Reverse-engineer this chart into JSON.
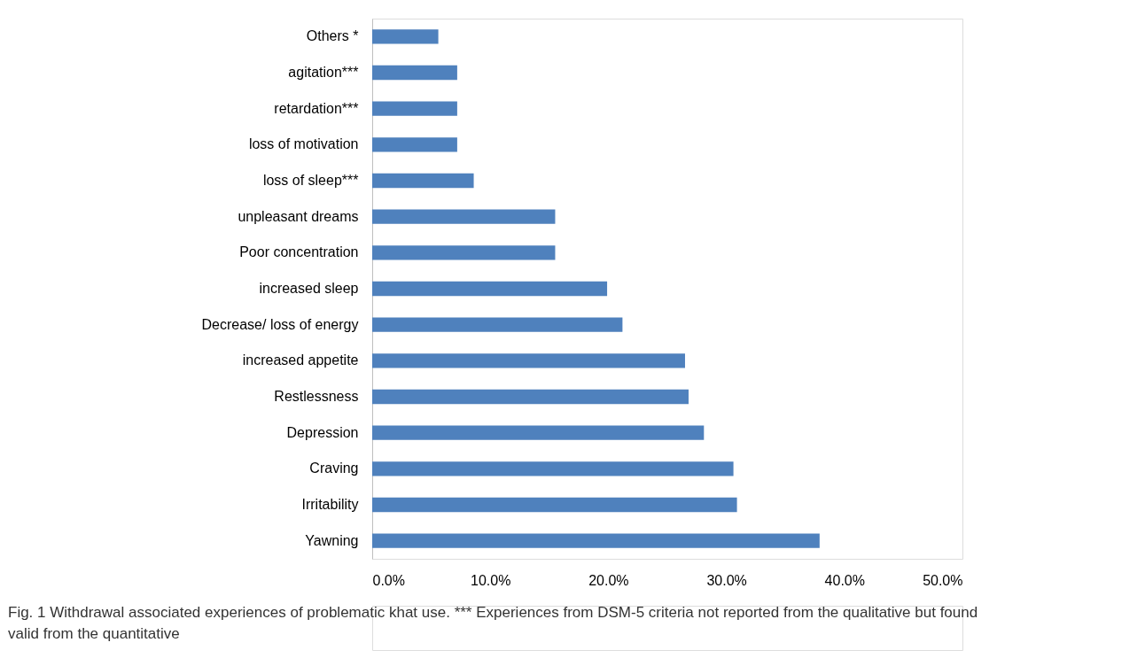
{
  "chart_data": {
    "type": "bar",
    "orientation": "horizontal",
    "categories": [
      "Others *",
      "agitation***",
      "retardation***",
      "loss of motivation",
      "loss of sleep***",
      "unpleasant dreams",
      "Poor concentration",
      "increased sleep",
      "Decrease/ loss of energy",
      "increased appetite",
      "Restlessness",
      "Depression",
      "Craving",
      "Irritability",
      "Yawning"
    ],
    "values": [
      5.6,
      7.2,
      7.2,
      7.2,
      8.6,
      15.5,
      15.5,
      19.9,
      21.2,
      26.5,
      26.8,
      28.1,
      30.6,
      30.9,
      37.9
    ],
    "color": "#4f81bd",
    "xlim": [
      0,
      50
    ],
    "xticks": [
      {
        "value": 0,
        "label": "0.0%"
      },
      {
        "value": 10,
        "label": "10.0%"
      },
      {
        "value": 20,
        "label": "20.0%"
      },
      {
        "value": 30,
        "label": "30.0%"
      },
      {
        "value": 40,
        "label": "40.0%"
      },
      {
        "value": 50,
        "label": "50.0%"
      }
    ],
    "grid": false,
    "annotations": [
      "Fig. 1 Withdrawal associated experiences of problematic khat use. *** Experiences from DSM-5 criteria not reported from the qualitative but found valid from the quantitative"
    ]
  }
}
